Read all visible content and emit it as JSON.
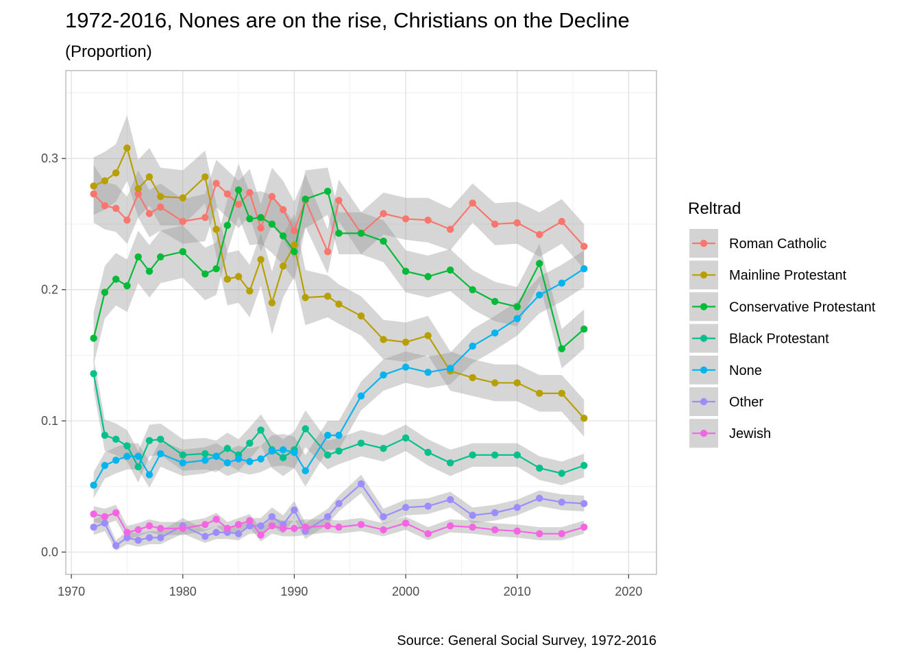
{
  "chart_data": {
    "type": "line",
    "title": "1972-2016, Nones are on the rise, Christians on the Decline",
    "subtitle": "(Proportion)",
    "caption": "Source: General Social Survey, 1972-2016",
    "xlabel": "",
    "ylabel": "",
    "xlim": [
      1969.5,
      2022.5
    ],
    "ylim": [
      -0.017,
      0.367
    ],
    "x_ticks": [
      1970,
      1980,
      1990,
      2000,
      2010,
      2020
    ],
    "y_ticks": [
      0.0,
      0.1,
      0.2,
      0.3
    ],
    "y_tick_labels": [
      "0.0",
      "0.1",
      "0.2",
      "0.3"
    ],
    "grid": true,
    "confidence_band": true,
    "legend": {
      "title": "Reltrad",
      "position": "right"
    },
    "years": [
      1972,
      1973,
      1974,
      1975,
      1976,
      1977,
      1978,
      1980,
      1982,
      1983,
      1984,
      1985,
      1986,
      1987,
      1988,
      1989,
      1990,
      1991,
      1993,
      1994,
      1996,
      1998,
      2000,
      2002,
      2004,
      2006,
      2008,
      2010,
      2012,
      2014,
      2016
    ],
    "series": [
      {
        "name": "Roman Catholic",
        "color": "#F8766D",
        "values": [
          0.273,
          0.264,
          0.262,
          0.253,
          0.273,
          0.258,
          0.263,
          0.252,
          0.255,
          0.281,
          0.273,
          0.265,
          0.274,
          0.247,
          0.271,
          0.261,
          0.245,
          0.268,
          0.229,
          0.268,
          0.243,
          0.258,
          0.254,
          0.253,
          0.246,
          0.266,
          0.25,
          0.251,
          0.242,
          0.252,
          0.233
        ],
        "se": [
          0.022,
          0.018,
          0.018,
          0.018,
          0.018,
          0.018,
          0.018,
          0.017,
          0.018,
          0.018,
          0.018,
          0.018,
          0.018,
          0.018,
          0.022,
          0.022,
          0.022,
          0.02,
          0.017,
          0.016,
          0.016,
          0.016,
          0.016,
          0.017,
          0.016,
          0.015,
          0.016,
          0.016,
          0.017,
          0.017,
          0.017
        ]
      },
      {
        "name": "Mainline Protestant",
        "color": "#B79F00",
        "values": [
          0.279,
          0.283,
          0.289,
          0.308,
          0.277,
          0.286,
          0.271,
          0.27,
          0.286,
          0.246,
          0.208,
          0.21,
          0.199,
          0.223,
          0.19,
          0.218,
          0.234,
          0.194,
          0.195,
          0.189,
          0.18,
          0.162,
          0.16,
          0.165,
          0.138,
          0.133,
          0.129,
          0.129,
          0.121,
          0.121,
          0.102
        ],
        "se": [
          0.022,
          0.022,
          0.022,
          0.025,
          0.022,
          0.022,
          0.022,
          0.021,
          0.02,
          0.02,
          0.02,
          0.02,
          0.02,
          0.02,
          0.024,
          0.024,
          0.024,
          0.021,
          0.016,
          0.015,
          0.015,
          0.015,
          0.015,
          0.015,
          0.015,
          0.014,
          0.014,
          0.014,
          0.014,
          0.014,
          0.014
        ]
      },
      {
        "name": "Conservative Protestant",
        "color": "#00BA38",
        "values": [
          0.163,
          0.198,
          0.208,
          0.203,
          0.225,
          0.214,
          0.225,
          0.229,
          0.212,
          0.216,
          0.249,
          0.276,
          0.254,
          0.255,
          0.25,
          0.241,
          0.229,
          0.269,
          0.275,
          0.243,
          0.243,
          0.237,
          0.214,
          0.21,
          0.215,
          0.2,
          0.191,
          0.187,
          0.22,
          0.155,
          0.17
        ],
        "se": [
          0.02,
          0.02,
          0.02,
          0.02,
          0.02,
          0.02,
          0.02,
          0.02,
          0.02,
          0.02,
          0.02,
          0.02,
          0.02,
          0.02,
          0.022,
          0.022,
          0.022,
          0.022,
          0.018,
          0.016,
          0.016,
          0.016,
          0.016,
          0.016,
          0.016,
          0.015,
          0.015,
          0.015,
          0.015,
          0.015,
          0.015
        ]
      },
      {
        "name": "Black Protestant",
        "color": "#00C08B",
        "values": [
          0.136,
          0.089,
          0.086,
          0.081,
          0.065,
          0.085,
          0.086,
          0.074,
          0.075,
          0.073,
          0.079,
          0.074,
          0.083,
          0.093,
          0.078,
          0.072,
          0.078,
          0.094,
          0.074,
          0.077,
          0.083,
          0.079,
          0.087,
          0.076,
          0.068,
          0.074,
          0.074,
          0.074,
          0.064,
          0.06,
          0.066
        ],
        "se": [
          0.012,
          0.012,
          0.012,
          0.012,
          0.012,
          0.012,
          0.012,
          0.012,
          0.012,
          0.012,
          0.012,
          0.012,
          0.012,
          0.012,
          0.014,
          0.014,
          0.014,
          0.014,
          0.011,
          0.01,
          0.01,
          0.01,
          0.01,
          0.01,
          0.01,
          0.009,
          0.009,
          0.009,
          0.009,
          0.009,
          0.009
        ]
      },
      {
        "name": "None",
        "color": "#00B4F0",
        "values": [
          0.051,
          0.066,
          0.07,
          0.073,
          0.073,
          0.059,
          0.075,
          0.068,
          0.07,
          0.073,
          0.068,
          0.071,
          0.069,
          0.071,
          0.077,
          0.078,
          0.076,
          0.062,
          0.089,
          0.089,
          0.119,
          0.135,
          0.141,
          0.137,
          0.14,
          0.157,
          0.167,
          0.178,
          0.196,
          0.205,
          0.216
        ],
        "se": [
          0.01,
          0.01,
          0.01,
          0.01,
          0.01,
          0.01,
          0.01,
          0.01,
          0.01,
          0.01,
          0.01,
          0.01,
          0.01,
          0.01,
          0.012,
          0.012,
          0.012,
          0.012,
          0.011,
          0.011,
          0.011,
          0.012,
          0.012,
          0.012,
          0.012,
          0.013,
          0.013,
          0.013,
          0.014,
          0.014,
          0.014
        ]
      },
      {
        "name": "Other",
        "color": "#9C8DFF",
        "values": [
          0.019,
          0.022,
          0.005,
          0.011,
          0.009,
          0.011,
          0.011,
          0.02,
          0.012,
          0.015,
          0.015,
          0.014,
          0.02,
          0.02,
          0.027,
          0.021,
          0.032,
          0.016,
          0.027,
          0.037,
          0.052,
          0.027,
          0.034,
          0.035,
          0.04,
          0.028,
          0.03,
          0.034,
          0.041,
          0.038,
          0.037
        ],
        "se": [
          0.006,
          0.006,
          0.004,
          0.005,
          0.005,
          0.005,
          0.005,
          0.006,
          0.005,
          0.005,
          0.005,
          0.005,
          0.006,
          0.006,
          0.007,
          0.007,
          0.007,
          0.006,
          0.006,
          0.006,
          0.007,
          0.006,
          0.006,
          0.006,
          0.006,
          0.006,
          0.006,
          0.006,
          0.006,
          0.006,
          0.006
        ]
      },
      {
        "name": "Jewish",
        "color": "#F564E3",
        "values": [
          0.029,
          0.027,
          0.03,
          0.015,
          0.017,
          0.02,
          0.018,
          0.018,
          0.021,
          0.025,
          0.018,
          0.021,
          0.024,
          0.013,
          0.02,
          0.018,
          0.018,
          0.019,
          0.02,
          0.019,
          0.021,
          0.017,
          0.022,
          0.014,
          0.02,
          0.019,
          0.017,
          0.016,
          0.014,
          0.014,
          0.019
        ],
        "se": [
          0.006,
          0.006,
          0.006,
          0.005,
          0.005,
          0.005,
          0.005,
          0.005,
          0.005,
          0.005,
          0.005,
          0.005,
          0.005,
          0.005,
          0.006,
          0.006,
          0.006,
          0.006,
          0.005,
          0.005,
          0.005,
          0.005,
          0.005,
          0.005,
          0.005,
          0.005,
          0.005,
          0.005,
          0.005,
          0.005,
          0.005
        ]
      }
    ]
  }
}
